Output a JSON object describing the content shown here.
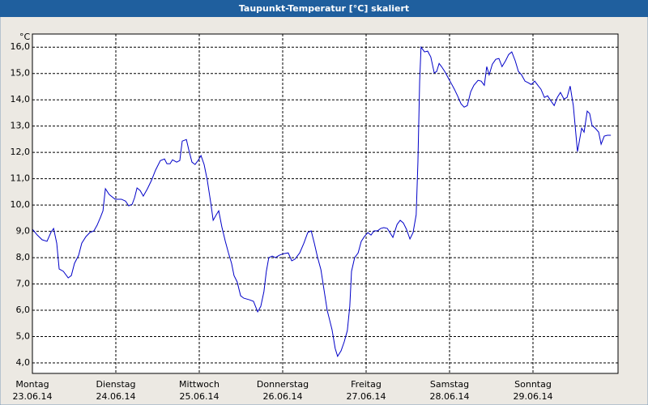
{
  "chart_data": {
    "type": "line",
    "title": "Taupunkt-Temperatur [°C] skaliert",
    "y_unit_label": "°C",
    "xlim": [
      0,
      168
    ],
    "ylim": [
      3.6,
      16.5
    ],
    "grid": true,
    "yticks": [
      {
        "value": 4,
        "label": "4,0"
      },
      {
        "value": 5,
        "label": "5,0"
      },
      {
        "value": 6,
        "label": "6,0"
      },
      {
        "value": 7,
        "label": "7,0"
      },
      {
        "value": 8,
        "label": "8,0"
      },
      {
        "value": 9,
        "label": "9,0"
      },
      {
        "value": 10,
        "label": "10,0"
      },
      {
        "value": 11,
        "label": "11,0"
      },
      {
        "value": 12,
        "label": "12,0"
      },
      {
        "value": 13,
        "label": "13,0"
      },
      {
        "value": 14,
        "label": "14,0"
      },
      {
        "value": 15,
        "label": "15,0"
      },
      {
        "value": 16,
        "label": "16,0"
      }
    ],
    "xticks": [
      {
        "value": 0,
        "label": "Montag"
      },
      {
        "value": 24,
        "label": "Dienstag"
      },
      {
        "value": 48,
        "label": "Mittwoch"
      },
      {
        "value": 72,
        "label": "Donnerstag"
      },
      {
        "value": 96,
        "label": "Freitag"
      },
      {
        "value": 120,
        "label": "Samstag"
      },
      {
        "value": 144,
        "label": "Sonntag"
      }
    ],
    "xtick_dates": [
      "23.06.14",
      "24.06.14",
      "25.06.14",
      "26.06.14",
      "27.06.14",
      "28.06.14",
      "29.06.14"
    ],
    "x": [
      0,
      1.4,
      2.8,
      4.2,
      5.4,
      6.1,
      7.0,
      7.7,
      8.9,
      10.3,
      11.2,
      12.1,
      13.3,
      14.2,
      15.4,
      16.5,
      17.7,
      18.6,
      19.6,
      20.3,
      21.0,
      22.1,
      23.8,
      25.6,
      26.8,
      27.7,
      28.7,
      29.4,
      30.1,
      31.0,
      31.9,
      33.1,
      34.3,
      35.4,
      36.8,
      38.0,
      38.7,
      39.6,
      40.3,
      41.5,
      42.4,
      43.1,
      44.3,
      45.0,
      45.9,
      46.8,
      47.8,
      48.5,
      49.4,
      50.3,
      51.3,
      52.0,
      52.9,
      53.6,
      54.5,
      55.5,
      56.4,
      57.3,
      58.0,
      58.9,
      59.9,
      60.8,
      62.4,
      63.6,
      64.8,
      65.7,
      66.6,
      67.3,
      68.0,
      69.0,
      69.9,
      71.0,
      72.2,
      73.6,
      74.6,
      75.5,
      76.9,
      78.1,
      79.2,
      80.2,
      81.1,
      82.0,
      83.0,
      83.9,
      84.8,
      85.5,
      86.2,
      87.1,
      87.8,
      88.8,
      89.7,
      90.6,
      91.3,
      91.8,
      92.7,
      93.7,
      94.6,
      95.5,
      96.5,
      97.4,
      98.3,
      99.3,
      100.2,
      101.1,
      102.1,
      103.0,
      103.7,
      104.9,
      105.8,
      106.7,
      107.6,
      108.6,
      109.5,
      110.4,
      110.9,
      111.4,
      111.8,
      112.8,
      113.7,
      114.6,
      115.6,
      116.3,
      117.0,
      117.7,
      118.6,
      119.5,
      120.5,
      121.4,
      122.3,
      123.3,
      124.2,
      125.1,
      126.1,
      127.0,
      128.2,
      129.1,
      130.0,
      130.7,
      131.4,
      132.3,
      133.3,
      134.2,
      135.1,
      136.1,
      137.0,
      137.9,
      138.9,
      139.8,
      140.7,
      141.7,
      142.6,
      143.5,
      144.5,
      145.4,
      146.3,
      147.3,
      148.2,
      149.1,
      150.1,
      151.0,
      151.9,
      152.9,
      153.8,
      154.7,
      155.6,
      156.8,
      157.5,
      158.0,
      158.7,
      159.6,
      160.3,
      161.0,
      161.9,
      162.9,
      163.6,
      164.5,
      165.4,
      166.4
    ],
    "series": [
      {
        "name": "Taupunkt",
        "color": "#0000c8",
        "values": [
          9.08,
          8.86,
          8.68,
          8.62,
          8.98,
          9.11,
          8.55,
          7.57,
          7.48,
          7.23,
          7.32,
          7.78,
          8.09,
          8.55,
          8.8,
          8.95,
          9.02,
          9.23,
          9.54,
          9.78,
          10.62,
          10.4,
          10.22,
          10.22,
          10.15,
          9.97,
          10.03,
          10.28,
          10.65,
          10.55,
          10.34,
          10.62,
          10.95,
          11.32,
          11.69,
          11.75,
          11.57,
          11.57,
          11.72,
          11.63,
          11.69,
          12.43,
          12.49,
          12.09,
          11.63,
          11.54,
          11.72,
          11.88,
          11.54,
          10.95,
          10.09,
          9.42,
          9.63,
          9.78,
          9.17,
          8.62,
          8.18,
          7.78,
          7.32,
          7.08,
          6.55,
          6.46,
          6.4,
          6.34,
          5.94,
          6.15,
          6.71,
          7.48,
          8.0,
          8.06,
          8.0,
          8.09,
          8.15,
          8.18,
          7.88,
          7.94,
          8.18,
          8.55,
          8.95,
          9.02,
          8.55,
          8.03,
          7.54,
          6.77,
          6.0,
          5.63,
          5.26,
          4.55,
          4.25,
          4.46,
          4.8,
          5.23,
          6.15,
          7.48,
          8.0,
          8.18,
          8.62,
          8.8,
          8.95,
          8.86,
          9.02,
          9.02,
          9.11,
          9.14,
          9.11,
          8.92,
          8.77,
          9.26,
          9.42,
          9.32,
          9.08,
          8.71,
          8.95,
          9.63,
          11.63,
          14.71,
          16.0,
          15.82,
          15.85,
          15.63,
          15.02,
          15.08,
          15.38,
          15.26,
          15.08,
          14.86,
          14.62,
          14.4,
          14.15,
          13.85,
          13.72,
          13.78,
          14.31,
          14.55,
          14.74,
          14.71,
          14.55,
          15.26,
          14.95,
          15.35,
          15.54,
          15.57,
          15.26,
          15.48,
          15.72,
          15.82,
          15.48,
          15.08,
          14.95,
          14.71,
          14.65,
          14.58,
          14.71,
          14.55,
          14.4,
          14.09,
          14.15,
          13.97,
          13.78,
          14.09,
          14.28,
          14.03,
          14.09,
          14.52,
          13.78,
          12.03,
          12.55,
          12.92,
          12.77,
          13.57,
          13.48,
          13.02,
          12.92,
          12.77,
          12.31,
          12.62,
          12.65,
          12.65
        ]
      }
    ]
  }
}
